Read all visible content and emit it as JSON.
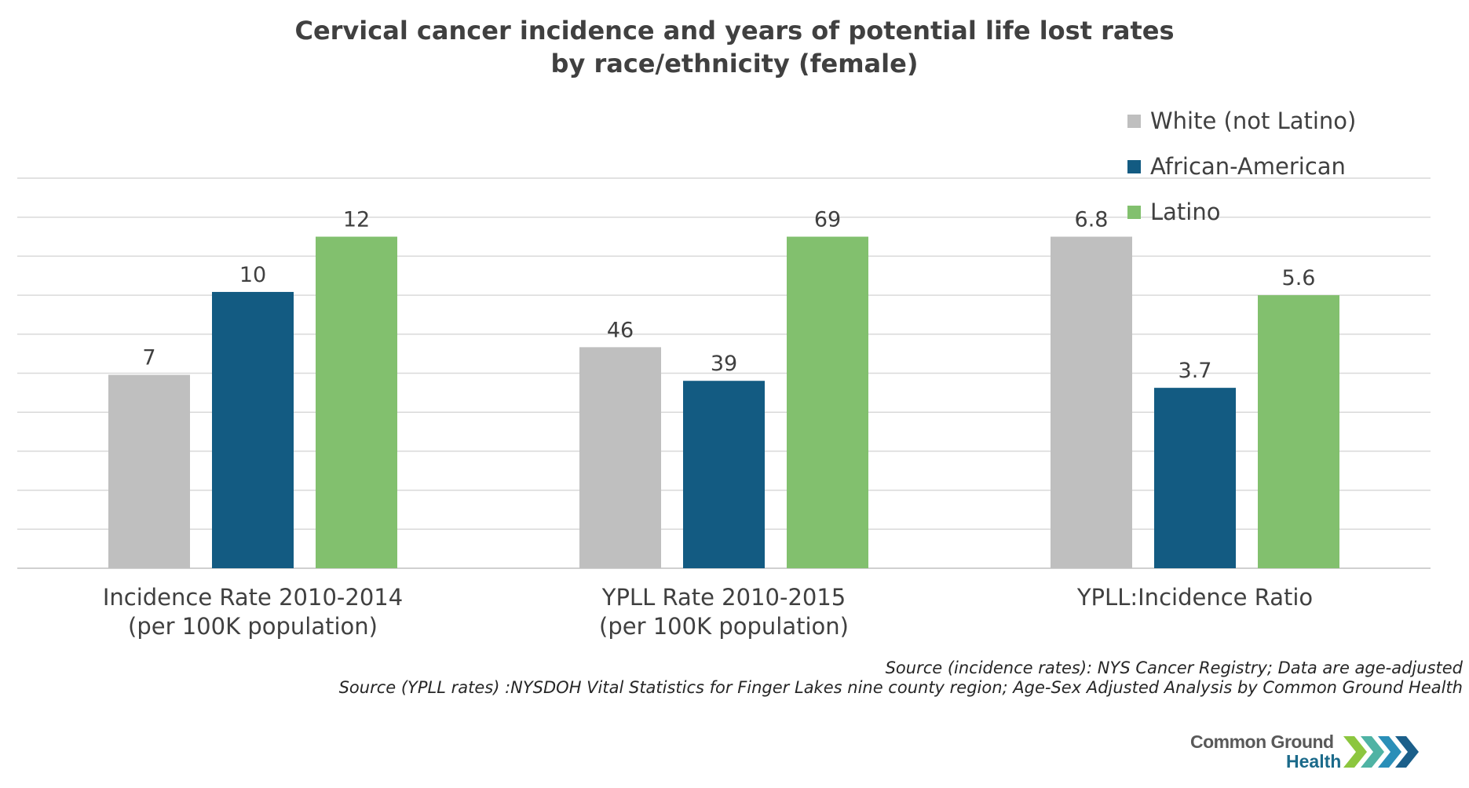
{
  "title_line1": "Cervical cancer incidence and years of potential life lost rates",
  "title_line2": "by race/ethnicity (female)",
  "legend": [
    {
      "label": "White (not Latino)",
      "color": "#bfbfbf"
    },
    {
      "label": "African-American",
      "color": "#135b82"
    },
    {
      "label": "Latino",
      "color": "#82c06e"
    }
  ],
  "sources": {
    "line1": "Source (incidence rates): NYS Cancer Registry; Data are age-adjusted",
    "line2": "Source (YPLL rates) :NYSDOH Vital Statistics for Finger Lakes nine county region; Age-Sex Adjusted Analysis by Common Ground Health"
  },
  "logo": {
    "line1": "Common Ground",
    "line2": "Health",
    "arrow_colors": [
      "#8cc63f",
      "#4fb3a4",
      "#2a8fb8",
      "#1b5f8a"
    ]
  },
  "chart_data": {
    "type": "bar",
    "categories": [
      {
        "line1": "Incidence Rate 2010-2014",
        "line2": "(per 100K population)"
      },
      {
        "line1": "YPLL Rate 2010-2015",
        "line2": "(per 100K population)"
      },
      {
        "line1": "YPLL:Incidence Ratio",
        "line2": ""
      }
    ],
    "series": [
      {
        "name": "White (not Latino)",
        "color": "#bfbfbf",
        "values": [
          7,
          46,
          6.8
        ],
        "labels": [
          "7",
          "46",
          "6.8"
        ]
      },
      {
        "name": "African-American",
        "color": "#135b82",
        "values": [
          10,
          39,
          3.7
        ],
        "labels": [
          "10",
          "39",
          "3.7"
        ]
      },
      {
        "name": "Latino",
        "color": "#82c06e",
        "values": [
          12,
          69,
          5.6
        ],
        "labels": [
          "12",
          "69",
          "5.6"
        ]
      }
    ],
    "note": "Each category is plotted on its own scale; the y axis is unlabeled",
    "gridlines": true,
    "y_axis_visible": false,
    "legend_position": "top-right",
    "gridline_count": 10
  }
}
